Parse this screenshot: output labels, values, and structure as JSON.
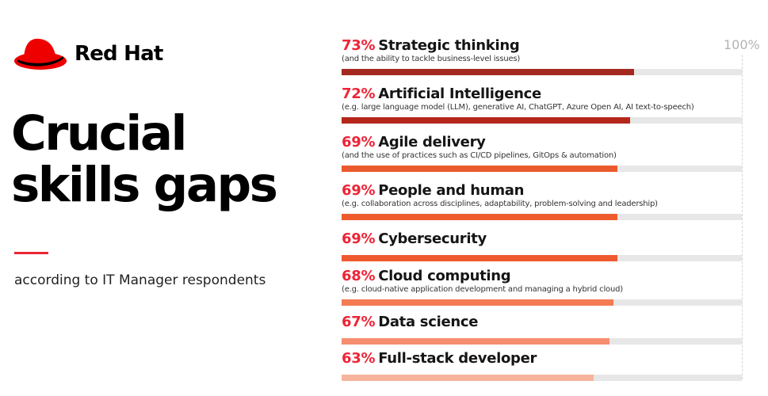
{
  "brand": {
    "name": "Red Hat",
    "color": "#ee0000"
  },
  "headline": {
    "line1": "Crucial",
    "line2": "skills gaps"
  },
  "subtitle": "according to IT Manager respondents",
  "max_label": "100%",
  "chart_data": {
    "type": "bar",
    "orientation": "horizontal",
    "xlim": [
      0,
      100
    ],
    "unit": "%",
    "categories": [
      "Strategic thinking",
      "Artificial Intelligence",
      "Agile delivery",
      "People and human",
      "Cybersecurity",
      "Cloud computing",
      "Data science",
      "Full-stack developer"
    ],
    "values": [
      73,
      72,
      69,
      69,
      69,
      68,
      67,
      63
    ],
    "value_labels": [
      "73%",
      "72%",
      "69%",
      "69%",
      "69%",
      "68%",
      "67%",
      "63%"
    ],
    "notes": [
      "(and the ability to tackle business-level issues)",
      "(e.g. large language model (LLM), generative AI, ChatGPT, Azure Open AI, AI text-to-speech)",
      "(and the use of practices such as  CI/CD pipelines, GitOps & automation)",
      "(e.g. collaboration across disciplines, adaptability, problem-solving and leadership)",
      "",
      "(e.g. cloud-native application development and managing a hybrid cloud)",
      "",
      ""
    ],
    "bar_colors": [
      "#a3291f",
      "#b5271b",
      "#ea5a2d",
      "#ee5b2c",
      "#ee5a30",
      "#f47b52",
      "#f58e6e",
      "#f6b49c"
    ],
    "track_color": "#e7e7e7",
    "value_color": "#ee2436"
  }
}
